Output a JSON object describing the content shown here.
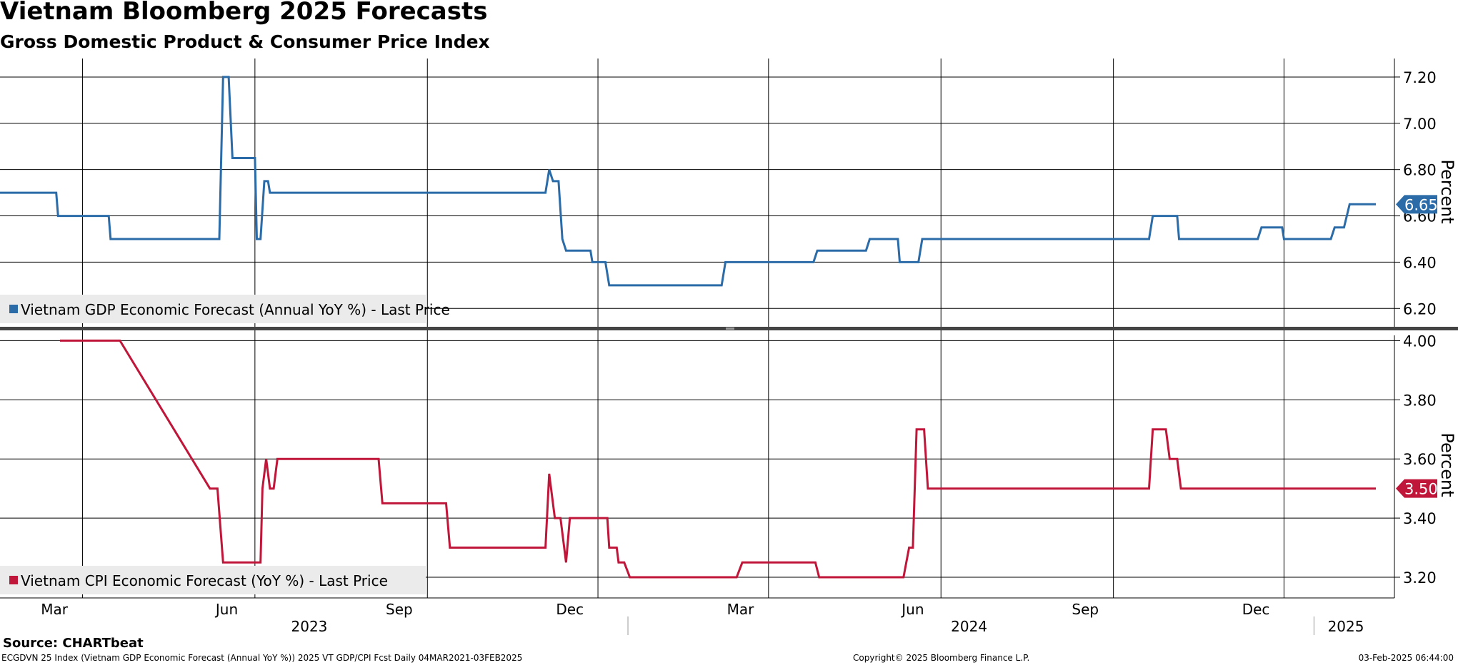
{
  "header": {
    "title": "Vietnam Bloomberg 2025 Forecasts",
    "subtitle": "Gross Domestic Product & Consumer Price Index"
  },
  "footer": {
    "source": "Source: CHARTbeat",
    "ticker_line": "ECGDVN 25 Index (Vietnam GDP Economic Forecast (Annual YoY %)) 2025 VT GDP/CPI Fcst  Daily 04MAR2021-03FEB2025",
    "copyright": "Copyright© 2025 Bloomberg Finance L.P.",
    "timestamp": "03-Feb-2025 06:44:00"
  },
  "chart_data": [
    {
      "type": "line",
      "panel": "top",
      "color": "#2b6ca8",
      "legend": "Vietnam GDP Economic Forecast (Annual YoY %) - Last Price",
      "legend_position": "bottom-left",
      "ylabel": "Percent",
      "ylim": [
        6.13,
        7.28
      ],
      "yticks": [
        "6.20",
        "6.40",
        "6.60",
        "6.80",
        "7.00",
        "7.20"
      ],
      "last_value_label": "6.65",
      "last_value": 6.65,
      "grid": true,
      "points": [
        [
          "2023-01-31",
          6.7
        ],
        [
          "2023-03-02",
          6.7
        ],
        [
          "2023-03-03",
          6.6
        ],
        [
          "2023-03-30",
          6.6
        ],
        [
          "2023-03-31",
          6.5
        ],
        [
          "2023-05-28",
          6.5
        ],
        [
          "2023-05-30",
          7.2
        ],
        [
          "2023-06-02",
          7.2
        ],
        [
          "2023-06-04",
          6.85
        ],
        [
          "2023-06-16",
          6.85
        ],
        [
          "2023-06-17",
          6.5
        ],
        [
          "2023-06-19",
          6.5
        ],
        [
          "2023-06-21",
          6.75
        ],
        [
          "2023-06-23",
          6.75
        ],
        [
          "2023-06-24",
          6.7
        ],
        [
          "2023-11-18",
          6.7
        ],
        [
          "2023-11-20",
          6.8
        ],
        [
          "2023-11-22",
          6.75
        ],
        [
          "2023-11-25",
          6.75
        ],
        [
          "2023-11-27",
          6.5
        ],
        [
          "2023-11-29",
          6.45
        ],
        [
          "2023-12-12",
          6.45
        ],
        [
          "2023-12-13",
          6.4
        ],
        [
          "2023-12-20",
          6.4
        ],
        [
          "2023-12-22",
          6.3
        ],
        [
          "2024-02-20",
          6.3
        ],
        [
          "2024-02-22",
          6.4
        ],
        [
          "2024-04-09",
          6.4
        ],
        [
          "2024-04-11",
          6.45
        ],
        [
          "2024-05-07",
          6.45
        ],
        [
          "2024-05-09",
          6.5
        ],
        [
          "2024-05-24",
          6.5
        ],
        [
          "2024-05-25",
          6.4
        ],
        [
          "2024-06-04",
          6.4
        ],
        [
          "2024-06-06",
          6.5
        ],
        [
          "2024-10-05",
          6.5
        ],
        [
          "2024-10-07",
          6.6
        ],
        [
          "2024-10-20",
          6.6
        ],
        [
          "2024-10-21",
          6.5
        ],
        [
          "2024-12-02",
          6.5
        ],
        [
          "2024-12-04",
          6.55
        ],
        [
          "2024-12-15",
          6.55
        ],
        [
          "2024-12-16",
          6.5
        ],
        [
          "2025-01-10",
          6.5
        ],
        [
          "2025-01-12",
          6.55
        ],
        [
          "2025-01-17",
          6.55
        ],
        [
          "2025-01-20",
          6.65
        ],
        [
          "2025-02-03",
          6.65
        ]
      ]
    },
    {
      "type": "line",
      "panel": "bottom",
      "color": "#c0163a",
      "legend": "Vietnam CPI Economic Forecast (YoY %) - Last Price",
      "legend_position": "bottom-left",
      "ylabel": "Percent",
      "ylim": [
        3.13,
        4.03
      ],
      "yticks": [
        "3.20",
        "3.40",
        "3.60",
        "3.80",
        "4.00"
      ],
      "last_value_label": "3.50",
      "last_value": 3.5,
      "grid": true,
      "points": [
        [
          "2023-03-04",
          4.0
        ],
        [
          "2023-04-05",
          4.0
        ],
        [
          "2023-05-23",
          3.5
        ],
        [
          "2023-05-27",
          3.5
        ],
        [
          "2023-05-30",
          3.25
        ],
        [
          "2023-06-19",
          3.25
        ],
        [
          "2023-06-20",
          3.5
        ],
        [
          "2023-06-22",
          3.6
        ],
        [
          "2023-06-24",
          3.5
        ],
        [
          "2023-06-26",
          3.5
        ],
        [
          "2023-06-28",
          3.6
        ],
        [
          "2023-08-21",
          3.6
        ],
        [
          "2023-08-23",
          3.45
        ],
        [
          "2023-09-26",
          3.45
        ],
        [
          "2023-09-28",
          3.3
        ],
        [
          "2023-11-18",
          3.3
        ],
        [
          "2023-11-20",
          3.55
        ],
        [
          "2023-11-23",
          3.4
        ],
        [
          "2023-11-26",
          3.4
        ],
        [
          "2023-11-29",
          3.25
        ],
        [
          "2023-12-01",
          3.4
        ],
        [
          "2023-12-21",
          3.4
        ],
        [
          "2023-12-22",
          3.3
        ],
        [
          "2023-12-26",
          3.3
        ],
        [
          "2023-12-27",
          3.25
        ],
        [
          "2023-12-30",
          3.25
        ],
        [
          "2024-01-02",
          3.2
        ],
        [
          "2024-02-28",
          3.2
        ],
        [
          "2024-03-02",
          3.25
        ],
        [
          "2024-04-10",
          3.25
        ],
        [
          "2024-04-12",
          3.2
        ],
        [
          "2024-05-27",
          3.2
        ],
        [
          "2024-05-30",
          3.3
        ],
        [
          "2024-06-01",
          3.3
        ],
        [
          "2024-06-03",
          3.7
        ],
        [
          "2024-06-07",
          3.7
        ],
        [
          "2024-06-09",
          3.5
        ],
        [
          "2024-10-05",
          3.5
        ],
        [
          "2024-10-07",
          3.7
        ],
        [
          "2024-10-14",
          3.7
        ],
        [
          "2024-10-16",
          3.6
        ],
        [
          "2024-10-20",
          3.6
        ],
        [
          "2024-10-22",
          3.5
        ],
        [
          "2025-02-03",
          3.5
        ]
      ]
    }
  ],
  "x_axis": {
    "month_labels": [
      {
        "label": "Mar",
        "date": "2023-03-01"
      },
      {
        "label": "Jun",
        "date": "2023-06-01"
      },
      {
        "label": "Sep",
        "date": "2023-09-01"
      },
      {
        "label": "Dec",
        "date": "2023-12-01"
      },
      {
        "label": "Mar",
        "date": "2024-03-01"
      },
      {
        "label": "Jun",
        "date": "2024-06-01"
      },
      {
        "label": "Sep",
        "date": "2024-09-01"
      },
      {
        "label": "Dec",
        "date": "2024-12-01"
      }
    ],
    "year_labels": [
      {
        "label": "2023",
        "date": "2023-07-15"
      },
      {
        "label": "2024",
        "date": "2024-07-01"
      },
      {
        "label": "2025",
        "date": "2025-01-18"
      }
    ],
    "gridline_dates": [
      "2023-03-16",
      "2023-06-16",
      "2023-09-16",
      "2023-12-16",
      "2024-03-16",
      "2024-06-16",
      "2024-09-16",
      "2024-12-16"
    ],
    "year_separator_dates": [
      "2024-01-01",
      "2025-01-01"
    ]
  }
}
